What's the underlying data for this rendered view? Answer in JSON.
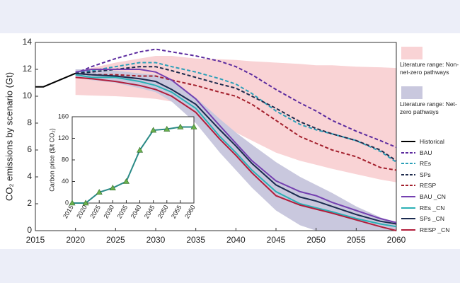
{
  "chart_data": [
    {
      "type": "line",
      "ylabel": "CO₂ emissions by scenario (Gt)",
      "x": [
        2015,
        2016,
        2018,
        2020,
        2022,
        2025,
        2028,
        2030,
        2032,
        2035,
        2038,
        2040,
        2042,
        2045,
        2048,
        2050,
        2052,
        2055,
        2058,
        2060
      ],
      "xlim": [
        2015,
        2060
      ],
      "xticks": [
        2015,
        2020,
        2025,
        2030,
        2035,
        2040,
        2045,
        2050,
        2055,
        2060
      ],
      "ylim": [
        0,
        14
      ],
      "yticks": [
        0,
        2,
        4,
        6,
        8,
        10,
        12,
        14
      ],
      "ranges": [
        {
          "name": "Literature range: Non-net-zero pathways",
          "color": "#f9d3d5",
          "upper": [
            null,
            null,
            null,
            11.8,
            12.1,
            12.5,
            12.8,
            13.0,
            13.0,
            12.8,
            12.75,
            12.7,
            12.6,
            12.5,
            12.4,
            12.3,
            12.3,
            12.2,
            12.15,
            12.1
          ],
          "lower": [
            null,
            null,
            null,
            10.1,
            10.05,
            10.0,
            9.9,
            9.8,
            9.6,
            9.2,
            8.0,
            7.3,
            6.7,
            5.8,
            5.2,
            4.9,
            4.6,
            4.2,
            3.8,
            3.6
          ]
        },
        {
          "name": "Literature range: Net-zero pathways",
          "color": "#c9c8de",
          "upper": [
            null,
            null,
            null,
            12.0,
            12.0,
            11.9,
            11.7,
            11.6,
            11.2,
            9.9,
            8.3,
            7.3,
            6.4,
            5.1,
            4.0,
            3.4,
            2.8,
            1.8,
            1.0,
            0.5
          ],
          "lower": [
            null,
            null,
            null,
            11.4,
            11.2,
            11.0,
            10.6,
            10.3,
            9.6,
            8.0,
            5.8,
            4.5,
            3.2,
            1.5,
            0.4,
            0,
            0,
            0,
            0,
            0
          ]
        }
      ],
      "series": [
        {
          "name": "Historical",
          "color": "#000000",
          "dashed": false,
          "values": [
            10.7,
            10.7,
            11.2,
            11.7,
            null,
            null,
            null,
            null,
            null,
            null,
            null,
            null,
            null,
            null,
            null,
            null,
            null,
            null,
            null,
            null
          ]
        },
        {
          "name": "BAU",
          "color": "#5b2a9e",
          "dashed": true,
          "values": [
            null,
            null,
            null,
            11.7,
            12.2,
            12.8,
            13.3,
            13.5,
            13.3,
            13.0,
            12.6,
            12.2,
            11.6,
            10.5,
            9.5,
            8.9,
            8.2,
            7.4,
            6.7,
            6.2
          ]
        },
        {
          "name": "REs",
          "color": "#2a9fb8",
          "dashed": true,
          "values": [
            null,
            null,
            null,
            11.7,
            11.9,
            12.2,
            12.5,
            12.5,
            12.2,
            11.8,
            11.3,
            10.9,
            10.2,
            8.9,
            7.9,
            7.5,
            7.2,
            6.7,
            5.9,
            5.1
          ]
        },
        {
          "name": "SPs",
          "color": "#1d2a4c",
          "dashed": true,
          "values": [
            null,
            null,
            null,
            11.7,
            11.8,
            12.0,
            12.2,
            12.2,
            11.9,
            11.4,
            10.9,
            10.6,
            10.0,
            9.1,
            8.1,
            7.6,
            7.2,
            6.7,
            6.0,
            5.2
          ]
        },
        {
          "name": "RESP",
          "color": "#a31f2c",
          "dashed": true,
          "values": [
            null,
            null,
            null,
            11.7,
            11.6,
            11.6,
            11.5,
            11.5,
            11.2,
            10.8,
            10.3,
            10.0,
            9.4,
            8.2,
            7.0,
            6.5,
            6.0,
            5.5,
            4.7,
            4.5
          ]
        },
        {
          "name": "BAU _CN",
          "color": "#7440b0",
          "dashed": false,
          "values": [
            null,
            null,
            null,
            11.8,
            12.0,
            12.0,
            12.0,
            11.8,
            11.2,
            9.8,
            7.8,
            6.5,
            5.2,
            3.7,
            2.9,
            2.6,
            2.1,
            1.5,
            0.9,
            0.6
          ]
        },
        {
          "name": "REs _CN",
          "color": "#2cb0b5",
          "dashed": false,
          "values": [
            null,
            null,
            null,
            11.6,
            11.4,
            11.4,
            11.1,
            10.8,
            10.3,
            9.1,
            7.0,
            5.8,
            4.5,
            2.9,
            2.0,
            1.7,
            1.4,
            0.9,
            0.5,
            0.3
          ]
        },
        {
          "name": "SPs _CN",
          "color": "#1b2b4f",
          "dashed": false,
          "values": [
            null,
            null,
            null,
            11.7,
            11.6,
            11.5,
            11.3,
            11.1,
            10.5,
            9.4,
            7.5,
            6.3,
            5.0,
            3.4,
            2.5,
            2.2,
            1.8,
            1.2,
            0.7,
            0.5
          ]
        },
        {
          "name": "RESP _CN",
          "color": "#b21d3b",
          "dashed": false,
          "values": [
            null,
            null,
            null,
            11.4,
            11.3,
            11.1,
            10.8,
            10.5,
            10.0,
            8.8,
            6.8,
            5.6,
            4.3,
            2.6,
            1.9,
            1.6,
            1.3,
            0.8,
            0.3,
            0.0
          ]
        }
      ]
    },
    {
      "type": "line",
      "ylabel": "Carbon price ($/t CO₂)",
      "x": [
        2015,
        2020,
        2025,
        2030,
        2035,
        2040,
        2045,
        2050,
        2055,
        2060
      ],
      "xlim": [
        2015,
        2060
      ],
      "xticks": [
        2015,
        2020,
        2025,
        2030,
        2035,
        2040,
        2045,
        2050,
        2055,
        2060
      ],
      "ylim": [
        0,
        160
      ],
      "yticks": [
        0,
        40,
        80,
        120,
        160
      ],
      "series": [
        {
          "color": "#2a8a86",
          "marker_color": "#6ab04c",
          "dashed": false,
          "values": [
            0,
            0,
            20,
            28,
            40,
            98,
            135,
            137,
            141,
            141
          ]
        }
      ]
    }
  ]
}
